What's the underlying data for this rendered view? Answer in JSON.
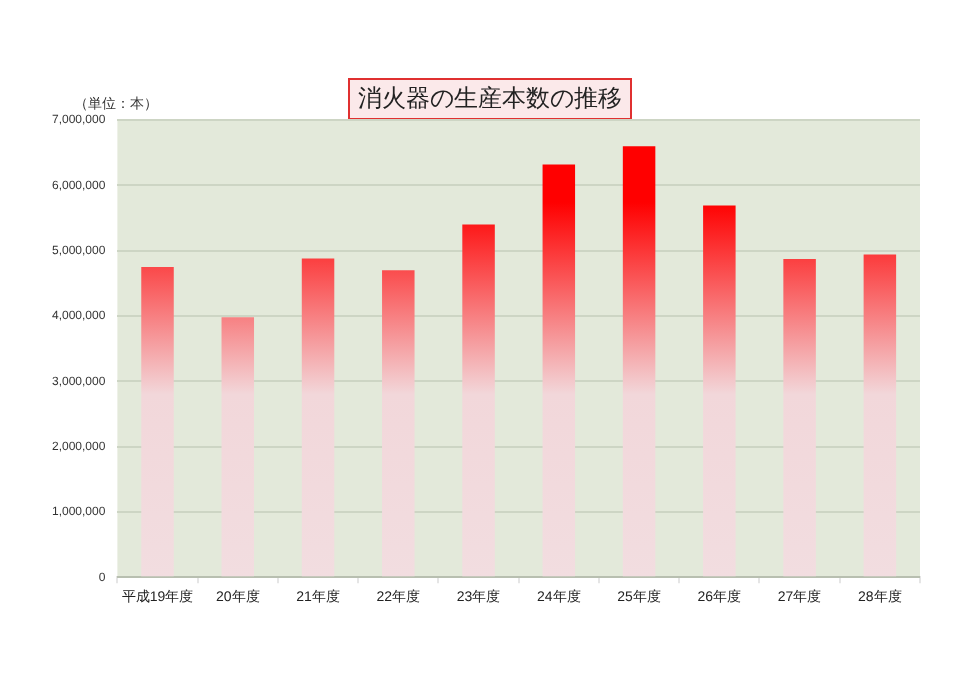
{
  "chart_data": {
    "type": "bar",
    "title": "消火器の生産本数の推移",
    "ylabel": "（単位：本）",
    "categories": [
      "平成19年度",
      "20年度",
      "21年度",
      "22年度",
      "23年度",
      "24年度",
      "25年度",
      "26年度",
      "27年度",
      "28年度"
    ],
    "values": [
      4750000,
      3980000,
      4880000,
      4700000,
      5400000,
      6320000,
      6600000,
      5690000,
      4870000,
      4940000
    ],
    "color": "#ff0000",
    "ylim": [
      0,
      7000000
    ],
    "yticks": [
      0,
      {
        "value": 1000000,
        "label": "1,000,000"
      },
      {
        "value": 2000000,
        "label": "2,000,000"
      },
      {
        "value": 3000000,
        "label": "3,000,000"
      },
      {
        "value": 4000000,
        "label": "4,000,000"
      },
      {
        "value": 5000000,
        "label": "5,000,000"
      },
      {
        "value": 6000000,
        "label": "6,000,000"
      },
      {
        "value": 7000000,
        "label": "7,000,000"
      }
    ],
    "grid": true,
    "legend": false
  }
}
